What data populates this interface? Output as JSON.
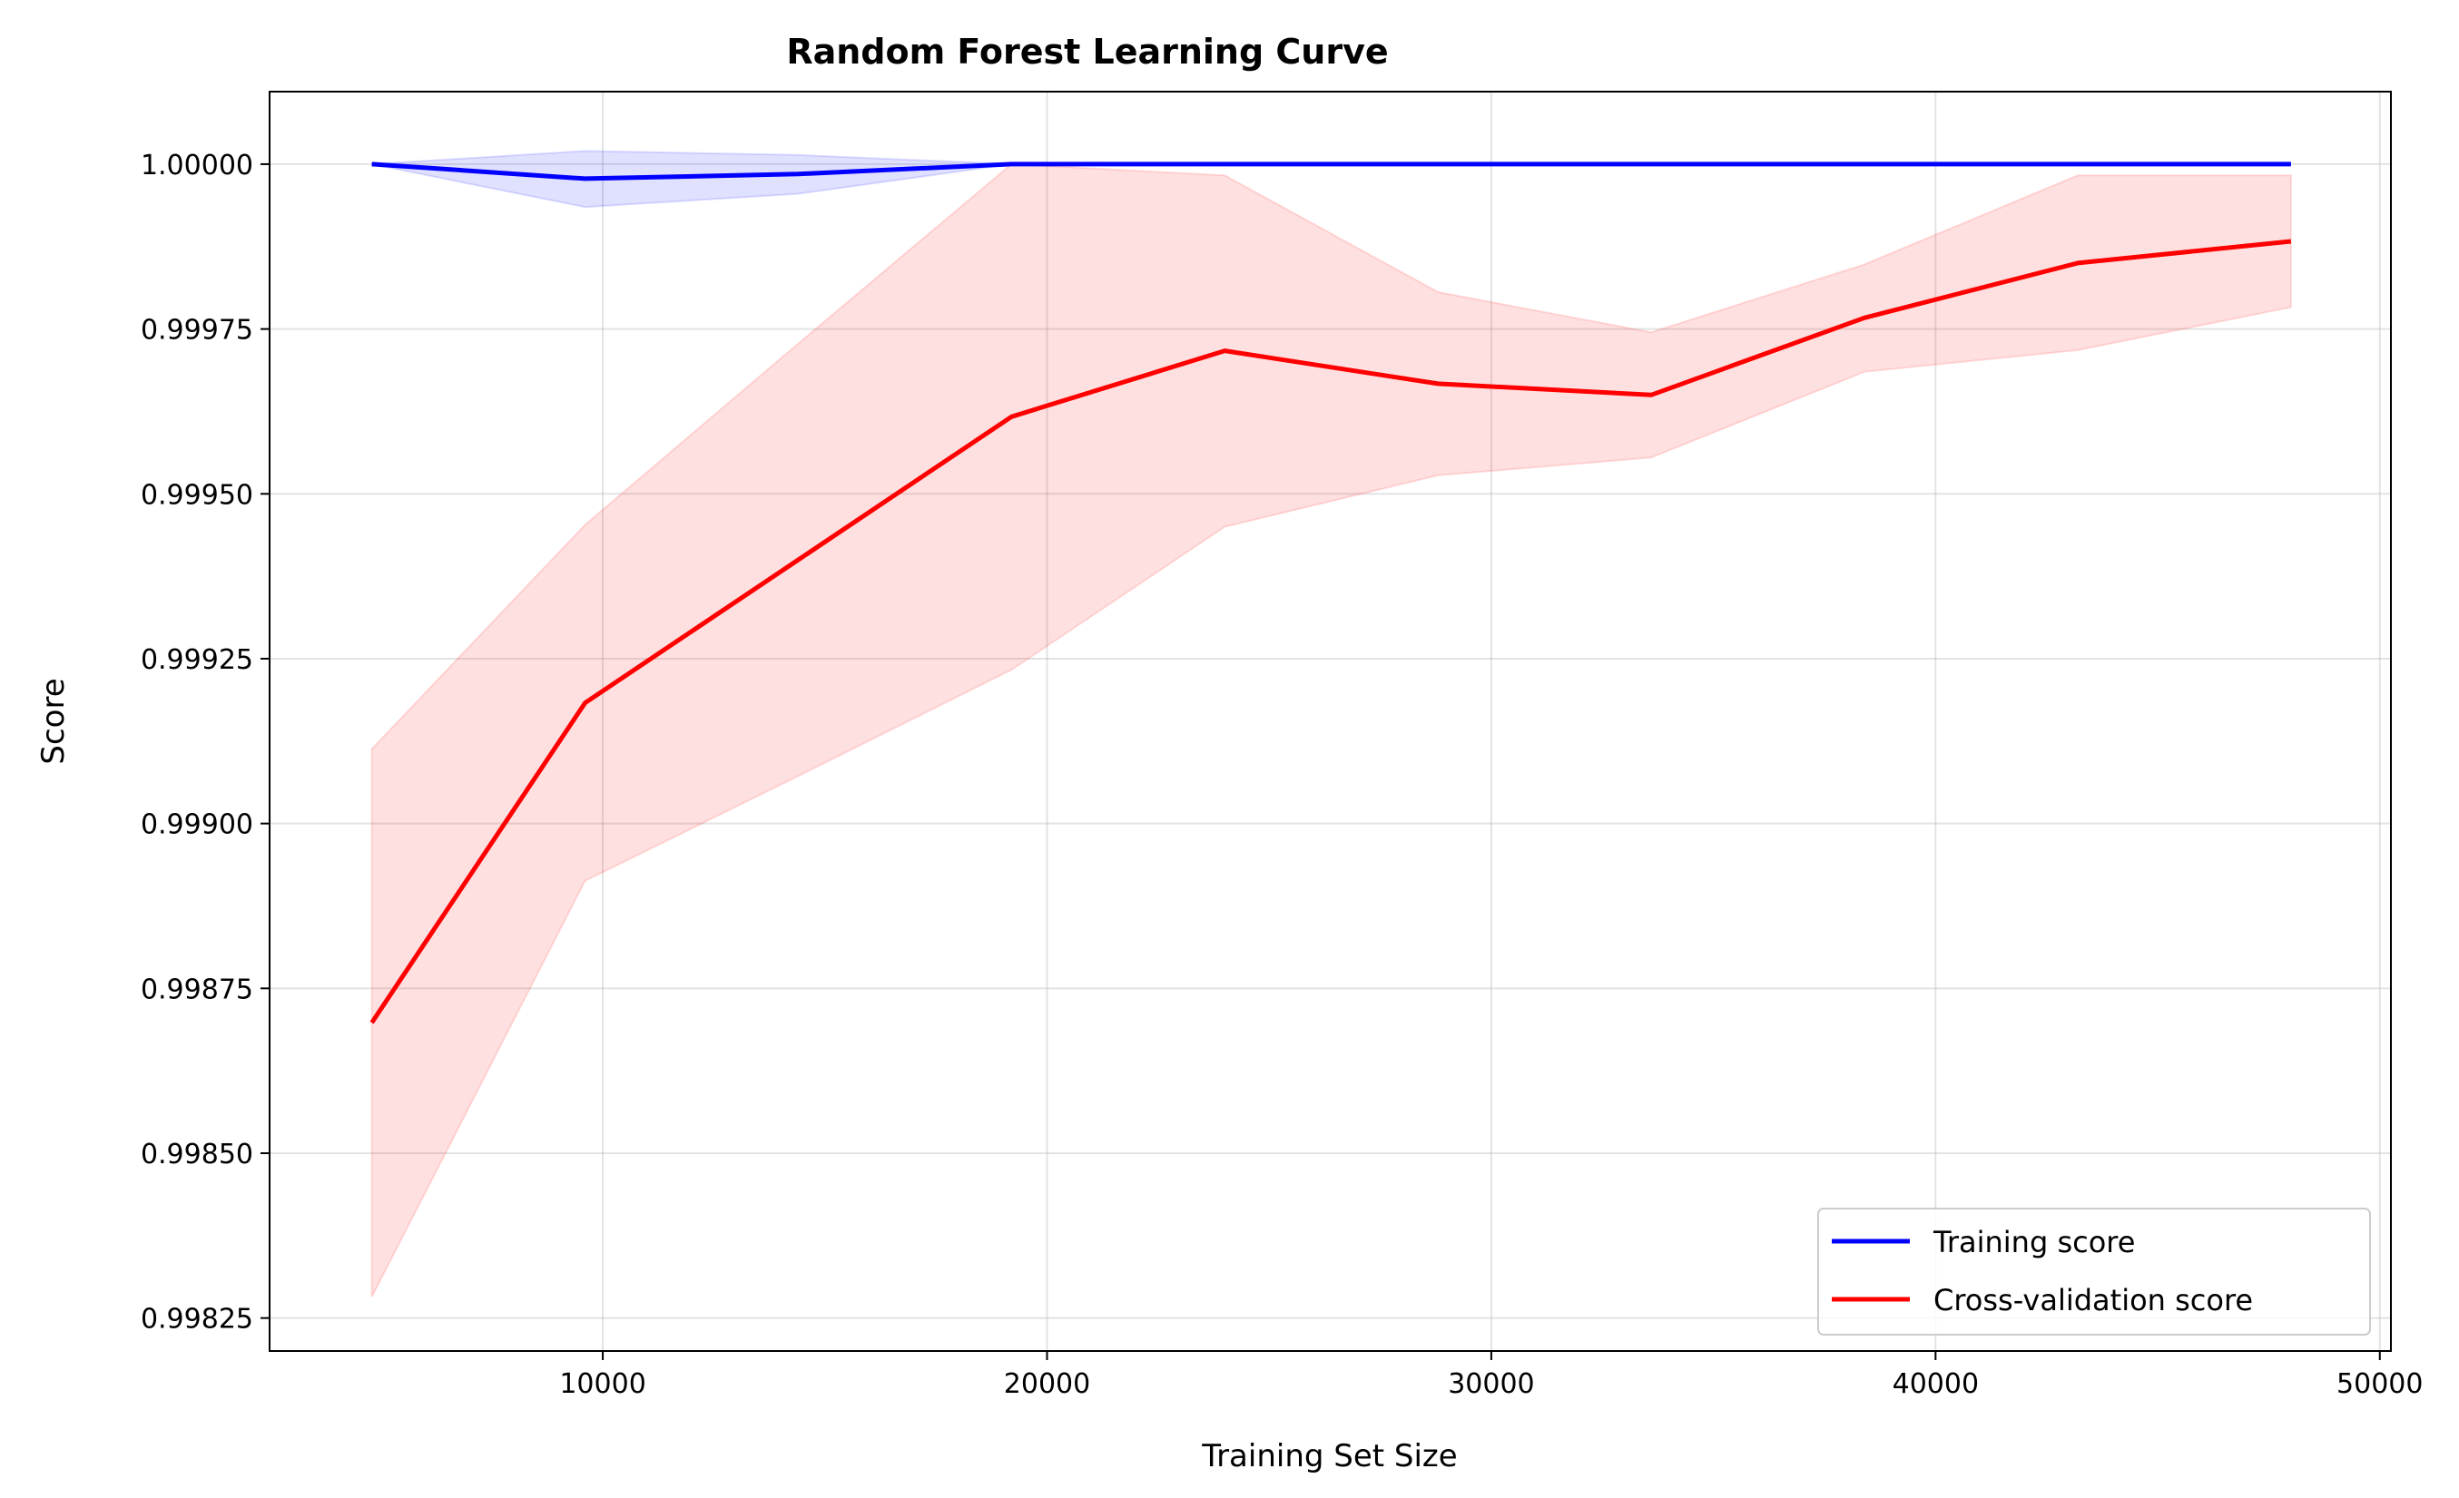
{
  "chart_data": {
    "type": "line",
    "title": "Random Forest Learning Curve",
    "xlabel": "Training Set Size",
    "ylabel": "Score",
    "xlim": [
      2500,
      50250
    ],
    "ylim": [
      0.9982,
      1.00011
    ],
    "xticks": [
      10000,
      20000,
      30000,
      40000,
      50000
    ],
    "xtick_labels": [
      "10000",
      "20000",
      "30000",
      "40000",
      "50000"
    ],
    "yticks": [
      0.99825,
      0.9985,
      0.99875,
      0.999,
      0.99925,
      0.9995,
      0.99975,
      1.0
    ],
    "ytick_labels": [
      "0.99825",
      "0.99850",
      "0.99875",
      "0.99900",
      "0.99925",
      "0.99950",
      "0.99975",
      "1.00000"
    ],
    "grid": true,
    "legend_position": "lower right",
    "x": [
      4800,
      9600,
      14400,
      19200,
      24000,
      28800,
      33600,
      38400,
      43200,
      48000
    ],
    "series": [
      {
        "name": "Training score",
        "color": "#0000ff",
        "band_color": "#0000ff",
        "values": [
          1.0,
          0.999978,
          0.999985,
          1.0,
          1.0,
          1.0,
          1.0,
          1.0,
          1.0,
          1.0
        ],
        "lower": [
          1.0,
          0.999935,
          0.999955,
          1.0,
          1.0,
          1.0,
          1.0,
          1.0,
          1.0,
          1.0
        ],
        "upper": [
          1.0,
          1.00002,
          1.000014,
          1.0,
          1.0,
          1.0,
          1.0,
          1.0,
          1.0,
          1.0
        ]
      },
      {
        "name": "Cross-validation score",
        "color": "#ff0000",
        "band_color": "#ff0000",
        "values": [
          0.998698,
          0.999183,
          0.9994,
          0.999617,
          0.999717,
          0.999667,
          0.99965,
          0.999767,
          0.99985,
          0.999883
        ],
        "lower": [
          0.998282,
          0.998913,
          0.999072,
          0.999233,
          0.99945,
          0.999528,
          0.999555,
          0.999685,
          0.999718,
          0.999783
        ],
        "upper": [
          0.999113,
          0.999453,
          0.999728,
          1.0,
          0.999983,
          0.999806,
          0.999745,
          0.999848,
          0.999983,
          0.999983
        ]
      }
    ]
  }
}
